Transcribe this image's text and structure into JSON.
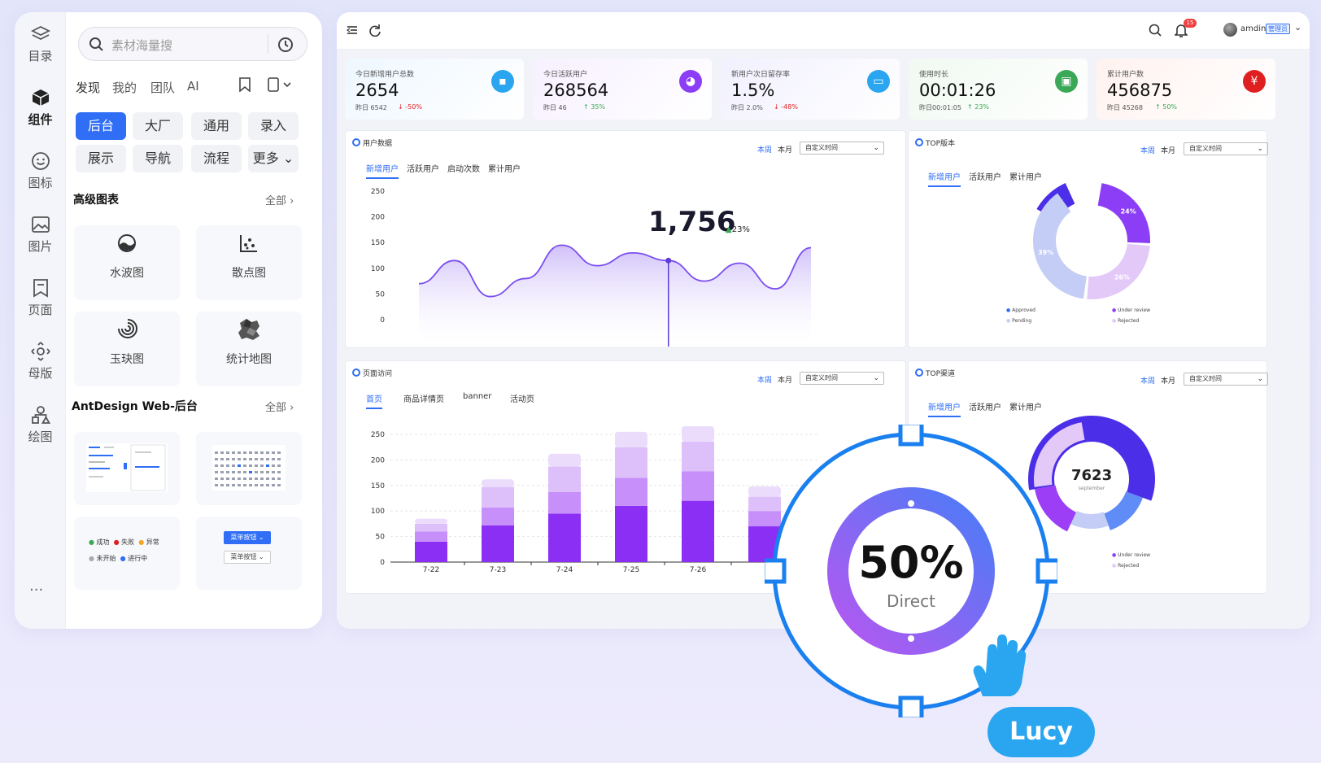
{
  "rail": [
    {
      "label": "目录",
      "icon": "layers-icon"
    },
    {
      "label": "组件",
      "icon": "cube-icon"
    },
    {
      "label": "图标",
      "icon": "smiley-icon"
    },
    {
      "label": "图片",
      "icon": "image-icon"
    },
    {
      "label": "页面",
      "icon": "bookmark-page-icon"
    },
    {
      "label": "母版",
      "icon": "master-icon"
    },
    {
      "label": "绘图",
      "icon": "shapes-icon"
    }
  ],
  "rail_more": "···",
  "search": {
    "placeholder": "素材海量搜"
  },
  "panel_tabs": [
    "发现",
    "我的",
    "团队",
    "AI"
  ],
  "chips": [
    "后台",
    "大厂",
    "通用",
    "录入",
    "展示",
    "导航",
    "流程",
    "更多"
  ],
  "section1": {
    "title": "高级图表",
    "all": "全部"
  },
  "chart_cards": [
    "水波图",
    "散点图",
    "玉玦图",
    "统计地图"
  ],
  "section2": {
    "title": "AntDesign Web-后台",
    "all": "全部"
  },
  "thumb_status": [
    "成功",
    "失败",
    "异常",
    "未开始",
    "进行中"
  ],
  "thumb_buttons": [
    "菜单按钮",
    "菜单按钮"
  ],
  "topbar": {
    "badge": "15",
    "user": "amdin",
    "role": "管理员"
  },
  "stats": [
    {
      "label": "今日新增用户总数",
      "value": "2654",
      "sub": "昨日 6542",
      "delta": "-50%",
      "dir": "down",
      "color": "#2aa6f0"
    },
    {
      "label": "今日活跃用户",
      "value": "268564",
      "sub": "昨日 46",
      "delta": "35%",
      "dir": "up",
      "color": "#8b3ef5"
    },
    {
      "label": "新用户次日留存率",
      "value": "1.5%",
      "sub": "昨日 2.0%",
      "delta": "-48%",
      "dir": "down",
      "color": "#2aa6f0"
    },
    {
      "label": "使用时长",
      "value": "00:01:26",
      "sub": "昨日00:01:05",
      "delta": "23%",
      "dir": "up",
      "color": "#3aa857"
    },
    {
      "label": "累计用户数",
      "value": "456875",
      "sub": "昨日 45268",
      "delta": "50%",
      "dir": "up",
      "color": "#e02020"
    }
  ],
  "p_user": {
    "title": "用户数据",
    "tabs": [
      "新增用户",
      "活跃用户",
      "启动次数",
      "累计用户"
    ],
    "week": "本周",
    "month": "本月",
    "select": "自定义时间",
    "big": "1,756",
    "pct": "23%"
  },
  "p_top": {
    "title": "TOP版本",
    "tabs": [
      "新增用户",
      "活跃用户",
      "累计用户"
    ],
    "week": "本周",
    "month": "本月",
    "select": "自定义时间",
    "legend": [
      "Approved",
      "Under review",
      "Pending",
      "Rejected"
    ]
  },
  "p_visit": {
    "title": "页面访问",
    "tabs": [
      "首页",
      "商品详情页",
      "banner",
      "活动页"
    ],
    "week": "本周",
    "month": "本月",
    "select": "自定义时间"
  },
  "p_chan": {
    "title": "TOP渠道",
    "tabs": [
      "新增用户",
      "活跃用户",
      "累计用户"
    ],
    "week": "本周",
    "month": "本月",
    "select": "自定义时间",
    "center": "7623",
    "center_sub": "september",
    "legend": [
      "Under review",
      "Rejected"
    ]
  },
  "overlay": {
    "value": "50%",
    "label": "Direct",
    "percent": 50
  },
  "cursor_name": "Lucy",
  "chart_data": [
    {
      "type": "area",
      "title": "用户数据",
      "y_ticks": [
        0,
        50,
        100,
        150,
        200,
        250
      ],
      "ylim": [
        0,
        250
      ],
      "values": [
        70,
        115,
        45,
        80,
        145,
        105,
        130,
        115,
        75,
        110,
        60,
        140
      ],
      "highlight": {
        "value": "1,756",
        "change": "23%"
      }
    },
    {
      "type": "pie",
      "title": "TOP版本",
      "slices": [
        {
          "label": "11%",
          "value": 11
        },
        {
          "label": "24%",
          "value": 24
        },
        {
          "label": "26%",
          "value": 26
        },
        {
          "label": "39%",
          "value": 39
        }
      ]
    },
    {
      "type": "bar",
      "title": "页面访问",
      "categories": [
        "7-22",
        "7-23",
        "7-24",
        "7-25",
        "7-26"
      ],
      "y_ticks": [
        0,
        50,
        100,
        150,
        200,
        250
      ],
      "ylim": [
        0,
        250
      ],
      "series": [
        {
          "values": [
            40,
            72,
            95,
            110,
            120
          ]
        },
        {
          "values": [
            20,
            35,
            42,
            55,
            58
          ]
        },
        {
          "values": [
            15,
            40,
            50,
            60,
            58
          ]
        },
        {
          "values": [
            10,
            15,
            25,
            30,
            30
          ]
        }
      ]
    },
    {
      "type": "pie",
      "title": "TOP渠道",
      "center": "7623"
    }
  ]
}
